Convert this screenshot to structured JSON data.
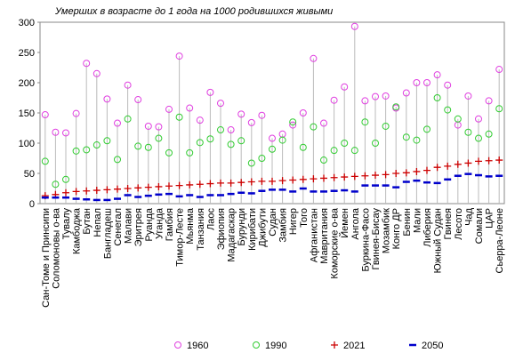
{
  "chart_data": {
    "type": "dot",
    "title": "Умерших в возрасте до 1 года на 1000 родившихся живыми",
    "categories": [
      "Сан-Томе и Принсипи",
      "Соломоновы о-ва",
      "Тувалу",
      "Камбоджа",
      "Бутан",
      "Непал",
      "Бангладеш",
      "Сенегал",
      "Малави",
      "Эритрея",
      "Руанда",
      "Уганда",
      "Гамбия",
      "Тимор-Лесте",
      "Мьянма",
      "Танзания",
      "Лаос",
      "Эфиопия",
      "Мадагаскар",
      "Бурунди",
      "Кирибати",
      "Джибути",
      "Судан",
      "Замбия",
      "Нигер",
      "Того",
      "Афганистан",
      "Мавритания",
      "Коморские о-ва",
      "Йемен",
      "Ангола",
      "Буркина-Фасо",
      "Гвинея-Бисау",
      "Мозамбик",
      "Конго ДР",
      "Бенин",
      "Мали",
      "Либерия",
      "Южный Судан",
      "Гвинея",
      "Лесото",
      "Чад",
      "Сомали",
      "ЦАР",
      "Сьерра-Леоне"
    ],
    "series": [
      {
        "name": "1960",
        "color": "#e040e0",
        "marker": "circle",
        "values": [
          147,
          118,
          117,
          149,
          232,
          215,
          173,
          133,
          196,
          172,
          128,
          127,
          156,
          244,
          158,
          138,
          184,
          166,
          122,
          148,
          134,
          146,
          108,
          115,
          130,
          150,
          240,
          133,
          171,
          193,
          293,
          170,
          177,
          178,
          158,
          183,
          200,
          200,
          213,
          196,
          130,
          178,
          140,
          170,
          222
        ]
      },
      {
        "name": "1990",
        "color": "#33cc33",
        "marker": "circle",
        "values": [
          70,
          32,
          40,
          87,
          89,
          97,
          104,
          73,
          140,
          95,
          93,
          108,
          84,
          143,
          84,
          101,
          107,
          122,
          98,
          104,
          67,
          75,
          90,
          105,
          135,
          93,
          127,
          72,
          88,
          100,
          88,
          135,
          100,
          128,
          160,
          110,
          105,
          123,
          175,
          155,
          140,
          118,
          108,
          115,
          157
        ]
      },
      {
        "name": "2021",
        "color": "#cc0000",
        "marker": "plus",
        "values": [
          13,
          15,
          18,
          20,
          21,
          22,
          23,
          24,
          25,
          26,
          27,
          28,
          29,
          30,
          31,
          32,
          33,
          34,
          34,
          35,
          36,
          37,
          37,
          38,
          39,
          40,
          41,
          42,
          43,
          44,
          45,
          46,
          47,
          48,
          50,
          51,
          53,
          55,
          60,
          62,
          65,
          67,
          70,
          71,
          72
        ]
      },
      {
        "name": "2050",
        "color": "#0000cc",
        "marker": "dash",
        "values": [
          10,
          10,
          10,
          8,
          7,
          6,
          6,
          8,
          14,
          11,
          13,
          15,
          16,
          12,
          14,
          11,
          14,
          14,
          16,
          18,
          17,
          21,
          23,
          23,
          20,
          25,
          20,
          20,
          21,
          22,
          20,
          30,
          30,
          30,
          27,
          36,
          38,
          35,
          34,
          40,
          46,
          49,
          47,
          45,
          46
        ]
      }
    ],
    "ylim": [
      0,
      300
    ],
    "yticks": [
      0,
      50,
      100,
      150,
      200,
      250,
      300
    ]
  }
}
